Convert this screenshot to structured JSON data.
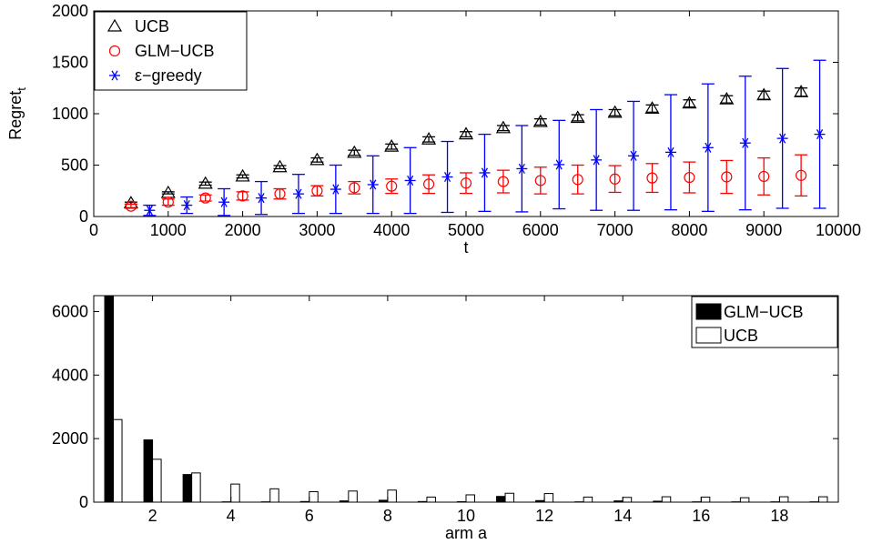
{
  "chart_data": [
    {
      "type": "scatter",
      "xlabel": "t",
      "ylabel": "Regret",
      "ylabel_subscript": "t",
      "xlim": [
        0,
        10000
      ],
      "ylim": [
        0,
        2000
      ],
      "xticks": [
        0,
        1000,
        2000,
        3000,
        4000,
        5000,
        6000,
        7000,
        8000,
        9000,
        10000
      ],
      "yticks": [
        0,
        500,
        1000,
        1500,
        2000
      ],
      "legend_position": "top-left",
      "series": [
        {
          "name": "UCB",
          "color": "#000000",
          "marker": "triangle",
          "x": [
            500,
            1000,
            1500,
            2000,
            2500,
            3000,
            3500,
            4000,
            4500,
            5000,
            5500,
            6000,
            6500,
            7000,
            7500,
            8000,
            8500,
            9000,
            9500
          ],
          "y": [
            130,
            230,
            320,
            390,
            480,
            550,
            620,
            680,
            750,
            800,
            860,
            920,
            960,
            1010,
            1050,
            1100,
            1140,
            1180,
            1210
          ],
          "err": [
            10,
            10,
            15,
            15,
            15,
            20,
            25,
            25,
            25,
            25,
            25,
            30,
            30,
            30,
            35,
            35,
            35,
            40,
            40
          ]
        },
        {
          "name": "GLM−UCB",
          "color": "#ff0000",
          "marker": "circle",
          "x": [
            500,
            1000,
            1500,
            2000,
            2500,
            3000,
            3500,
            4000,
            4500,
            5000,
            5500,
            6000,
            6500,
            7000,
            7500,
            8000,
            8500,
            9000,
            9500
          ],
          "y": [
            100,
            140,
            180,
            200,
            220,
            250,
            280,
            295,
            315,
            325,
            340,
            350,
            360,
            365,
            375,
            380,
            385,
            390,
            400
          ],
          "err": [
            20,
            30,
            30,
            40,
            50,
            50,
            60,
            70,
            90,
            100,
            110,
            130,
            140,
            130,
            140,
            150,
            160,
            180,
            200
          ]
        },
        {
          "name": "ε−greedy",
          "color": "#0000ff",
          "marker": "star",
          "x": [
            750,
            1250,
            1750,
            2250,
            2750,
            3250,
            3750,
            4250,
            4750,
            5250,
            5750,
            6250,
            6750,
            7250,
            7750,
            8250,
            8750,
            9250,
            9750
          ],
          "y": [
            60,
            110,
            140,
            180,
            220,
            265,
            310,
            350,
            385,
            425,
            465,
            505,
            550,
            590,
            625,
            670,
            715,
            760,
            800
          ],
          "err": [
            50,
            80,
            130,
            160,
            190,
            235,
            280,
            320,
            345,
            375,
            420,
            430,
            490,
            530,
            560,
            620,
            650,
            680,
            720
          ]
        }
      ]
    },
    {
      "type": "bar",
      "xlabel": "arm a",
      "ylabel": "",
      "xlim": [
        0.5,
        19.5
      ],
      "ylim": [
        0,
        6500
      ],
      "xticks": [
        2,
        4,
        6,
        8,
        10,
        12,
        14,
        16,
        18
      ],
      "yticks": [
        0,
        2000,
        4000,
        6000
      ],
      "legend_position": "top-right",
      "categories": [
        1,
        2,
        3,
        4,
        5,
        6,
        7,
        8,
        9,
        10,
        11,
        12,
        13,
        14,
        15,
        16,
        17,
        18,
        19
      ],
      "series": [
        {
          "name": "GLM−UCB",
          "color": "#000000",
          "values": [
            6500,
            1960,
            870,
            10,
            10,
            20,
            40,
            60,
            20,
            15,
            180,
            50,
            10,
            40,
            30,
            10,
            10,
            10,
            10
          ]
        },
        {
          "name": "UCB",
          "color": "#ffffff",
          "values": [
            2600,
            1350,
            920,
            570,
            420,
            330,
            350,
            380,
            160,
            230,
            280,
            270,
            160,
            150,
            170,
            160,
            140,
            170,
            170
          ]
        }
      ]
    }
  ]
}
